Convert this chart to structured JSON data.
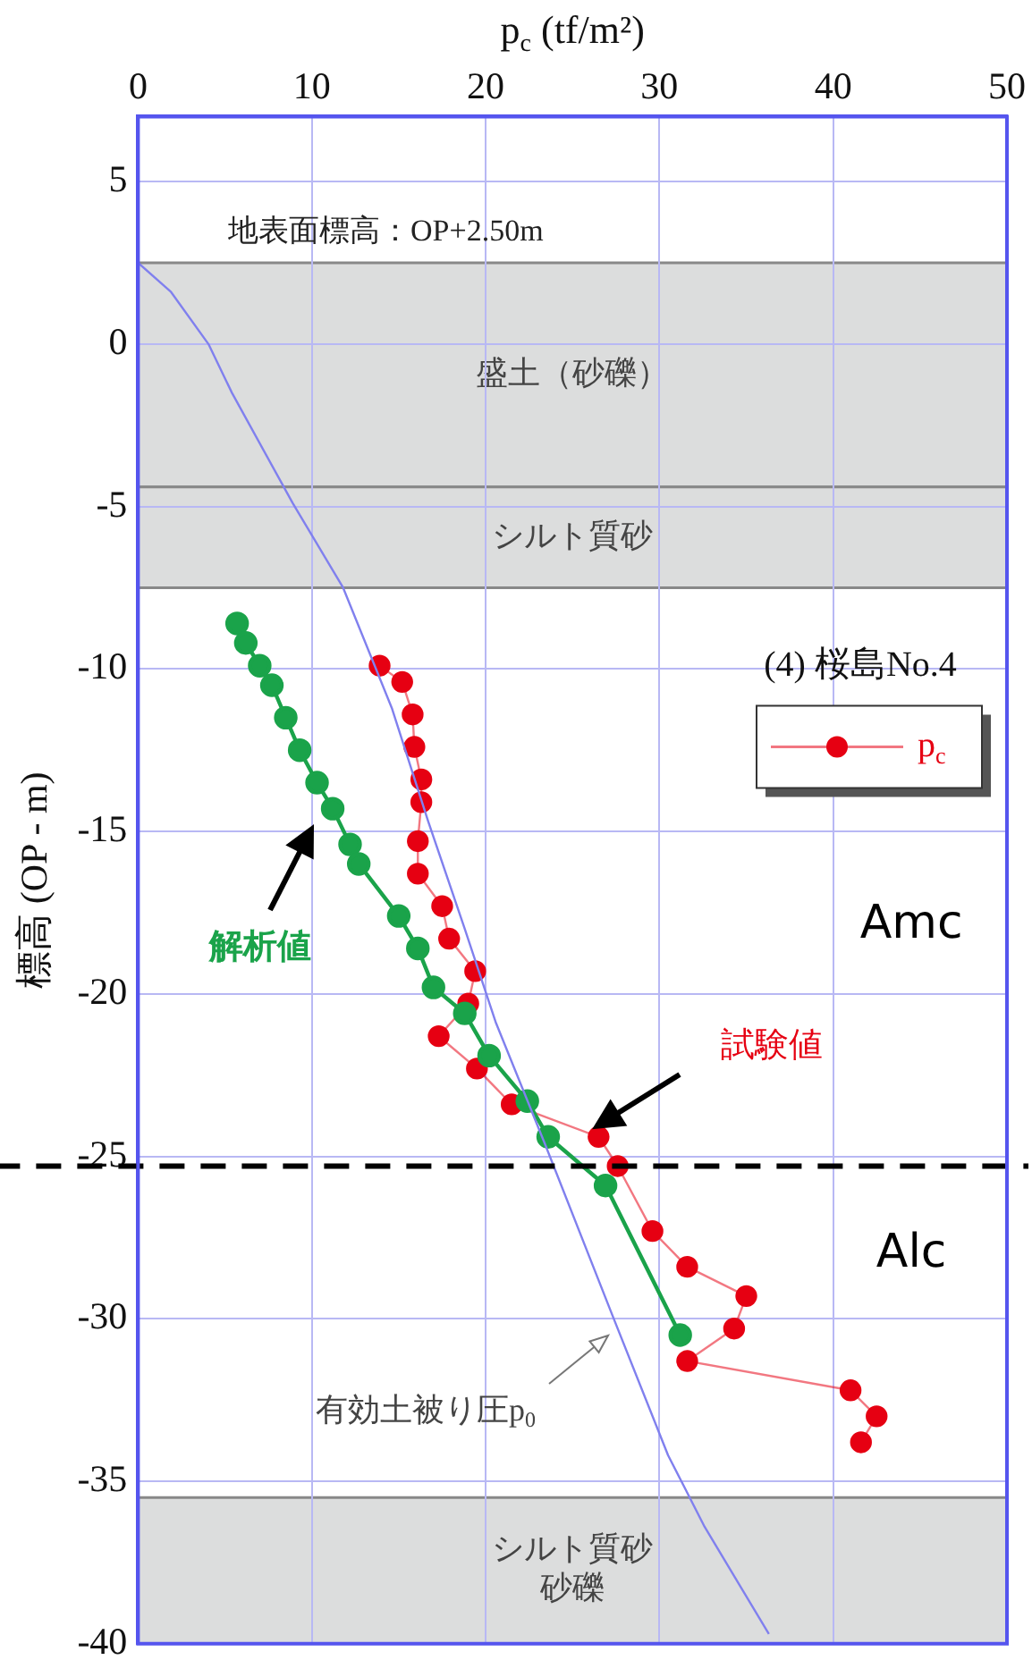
{
  "chart_data": {
    "type": "line",
    "xlabel": "p$_{c}$ (tf/m²)",
    "ylabel": "標高 (OP - m)",
    "legend_title": "(4) 桜島No.4",
    "legend": "right",
    "grid": true,
    "xlim": [
      0,
      50
    ],
    "xticks": [
      0,
      10,
      20,
      30,
      40,
      50
    ],
    "ylim": [
      -40,
      7
    ],
    "yticks": [
      5,
      0,
      -5,
      -10,
      -15,
      -20,
      -25,
      -30,
      -35,
      -40
    ],
    "series": [
      {
        "marker": "none",
        "color": "#8080ee",
        "x": [
          0,
          1.9,
          4.05,
          5.4,
          8.9,
          11.8,
          14.6,
          16.7,
          18.8,
          20.6,
          23.4,
          27.3,
          30.5,
          32.6,
          36.3
        ],
        "values": [
          2.5,
          1.6,
          0,
          -1.5,
          -4.9,
          -7.5,
          -11.2,
          -14.7,
          -18,
          -20.9,
          -24.6,
          -29.9,
          -34.2,
          -36.4,
          -39.7
        ]
      },
      {
        "marker": "circle",
        "color": "#1aa34a",
        "x": [
          5.7,
          6.2,
          7,
          7.7,
          8.5,
          9.3,
          10.3,
          11.2,
          12.2,
          12.7,
          15,
          16.1,
          17,
          18.8,
          20.2,
          22.4,
          23.6,
          26.9,
          31.2
        ],
        "values": [
          -8.6,
          -9.2,
          -9.9,
          -10.5,
          -11.5,
          -12.5,
          -13.5,
          -14.3,
          -15.4,
          -16,
          -17.6,
          -18.6,
          -19.8,
          -20.6,
          -21.9,
          -23.3,
          -24.4,
          -25.9,
          -30.5
        ]
      },
      {
        "marker": "circle",
        "name": "p$_{c}$",
        "color": "#e60012",
        "x": [
          13.9,
          15.2,
          15.8,
          15.9,
          16.3,
          16.3,
          16.1,
          16.1,
          17.5,
          17.9,
          19.4,
          19,
          17.3,
          19.5,
          21.5,
          26.5,
          27.6,
          29.6,
          31.6,
          35,
          34.3,
          31.6,
          41,
          42.5,
          41.6
        ],
        "values": [
          -9.9,
          -10.4,
          -11.4,
          -12.4,
          -13.4,
          -14.1,
          -15.3,
          -16.3,
          -17.3,
          -18.3,
          -19.3,
          -20.3,
          -21.3,
          -22.3,
          -23.4,
          -24.4,
          -25.3,
          -27.3,
          -28.4,
          -29.3,
          -30.3,
          -31.3,
          -32.2,
          -33,
          -33.8
        ]
      }
    ],
    "bands": [
      {
        "axis": "y",
        "from": 2.5,
        "to": -4.4,
        "label": "盛土（砂礫）",
        "color": "#dcdddd"
      },
      {
        "axis": "y",
        "from": -4.4,
        "to": -7.5,
        "label": "シルト質砂",
        "color": "#dcdddd"
      },
      {
        "axis": "y",
        "from": -35.5,
        "to": -40,
        "label": "シルト質砂砂礫",
        "color": "#dcdddd"
      }
    ],
    "ref_lines": [
      {
        "axis": "y",
        "value": -25.3,
        "line_style": "dashed",
        "color": "#000000"
      }
    ],
    "annotations": [
      "地表面標高：OP+2.50m",
      "解析値",
      "試験値",
      "Amc",
      "Alc",
      "有効土被り圧p$_{0}$"
    ]
  }
}
